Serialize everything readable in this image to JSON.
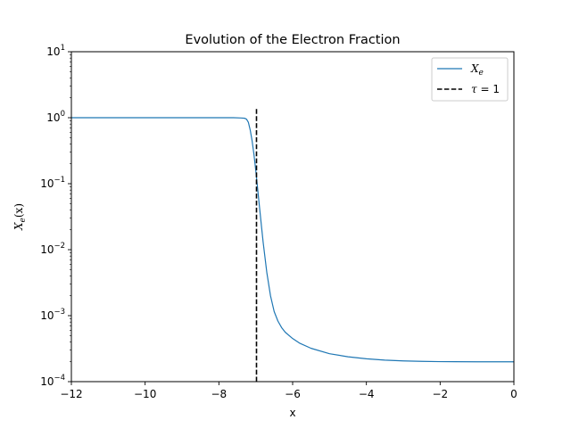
{
  "chart_data": {
    "type": "line",
    "title": "Evolution of the Electron Fraction",
    "xlabel": "x",
    "ylabel_main": "X",
    "ylabel_sub": "e",
    "ylabel_rest": "(x)",
    "xlim": [
      -12,
      0
    ],
    "ylim": [
      0.0001,
      10
    ],
    "yscale": "log",
    "x_ticks": [
      -12,
      -10,
      -8,
      -6,
      -4,
      -2,
      0
    ],
    "x_tick_labels": [
      "−12",
      "−10",
      "−8",
      "−6",
      "−4",
      "−2",
      "0"
    ],
    "y_ticks": [
      0.0001,
      0.001,
      0.01,
      0.1,
      1,
      10
    ],
    "y_tick_exponents": [
      "−4",
      "−3",
      "−2",
      "−1",
      "0",
      "1"
    ],
    "legend_position": "upper-right",
    "series": [
      {
        "name_main": "X",
        "name_sub": "e",
        "color": "#1f77b4",
        "style": "solid",
        "x": [
          -12,
          -9,
          -8,
          -7.6,
          -7.4,
          -7.3,
          -7.25,
          -7.2,
          -7.15,
          -7.1,
          -7.05,
          -7.0,
          -6.95,
          -6.9,
          -6.85,
          -6.8,
          -6.7,
          -6.6,
          -6.5,
          -6.4,
          -6.3,
          -6.2,
          -6.0,
          -5.8,
          -5.5,
          -5.0,
          -4.5,
          -4.0,
          -3.5,
          -3.0,
          -2.5,
          -2.0,
          -1.0,
          0
        ],
        "y": [
          1.0,
          1.0,
          1.0,
          0.999,
          0.99,
          0.98,
          0.95,
          0.85,
          0.65,
          0.45,
          0.28,
          0.16,
          0.085,
          0.045,
          0.024,
          0.013,
          0.0045,
          0.002,
          0.00115,
          0.00083,
          0.00066,
          0.00056,
          0.00045,
          0.00038,
          0.00032,
          0.000265,
          0.000238,
          0.000222,
          0.000212,
          0.000206,
          0.000203,
          0.000201,
          0.0002,
          0.0002
        ]
      },
      {
        "name_main": "τ",
        "name_rest": " = 1",
        "color": "#000000",
        "style": "dashed",
        "x": [
          -6.98,
          -6.98
        ],
        "y": [
          0.0001,
          1.45
        ]
      }
    ]
  }
}
